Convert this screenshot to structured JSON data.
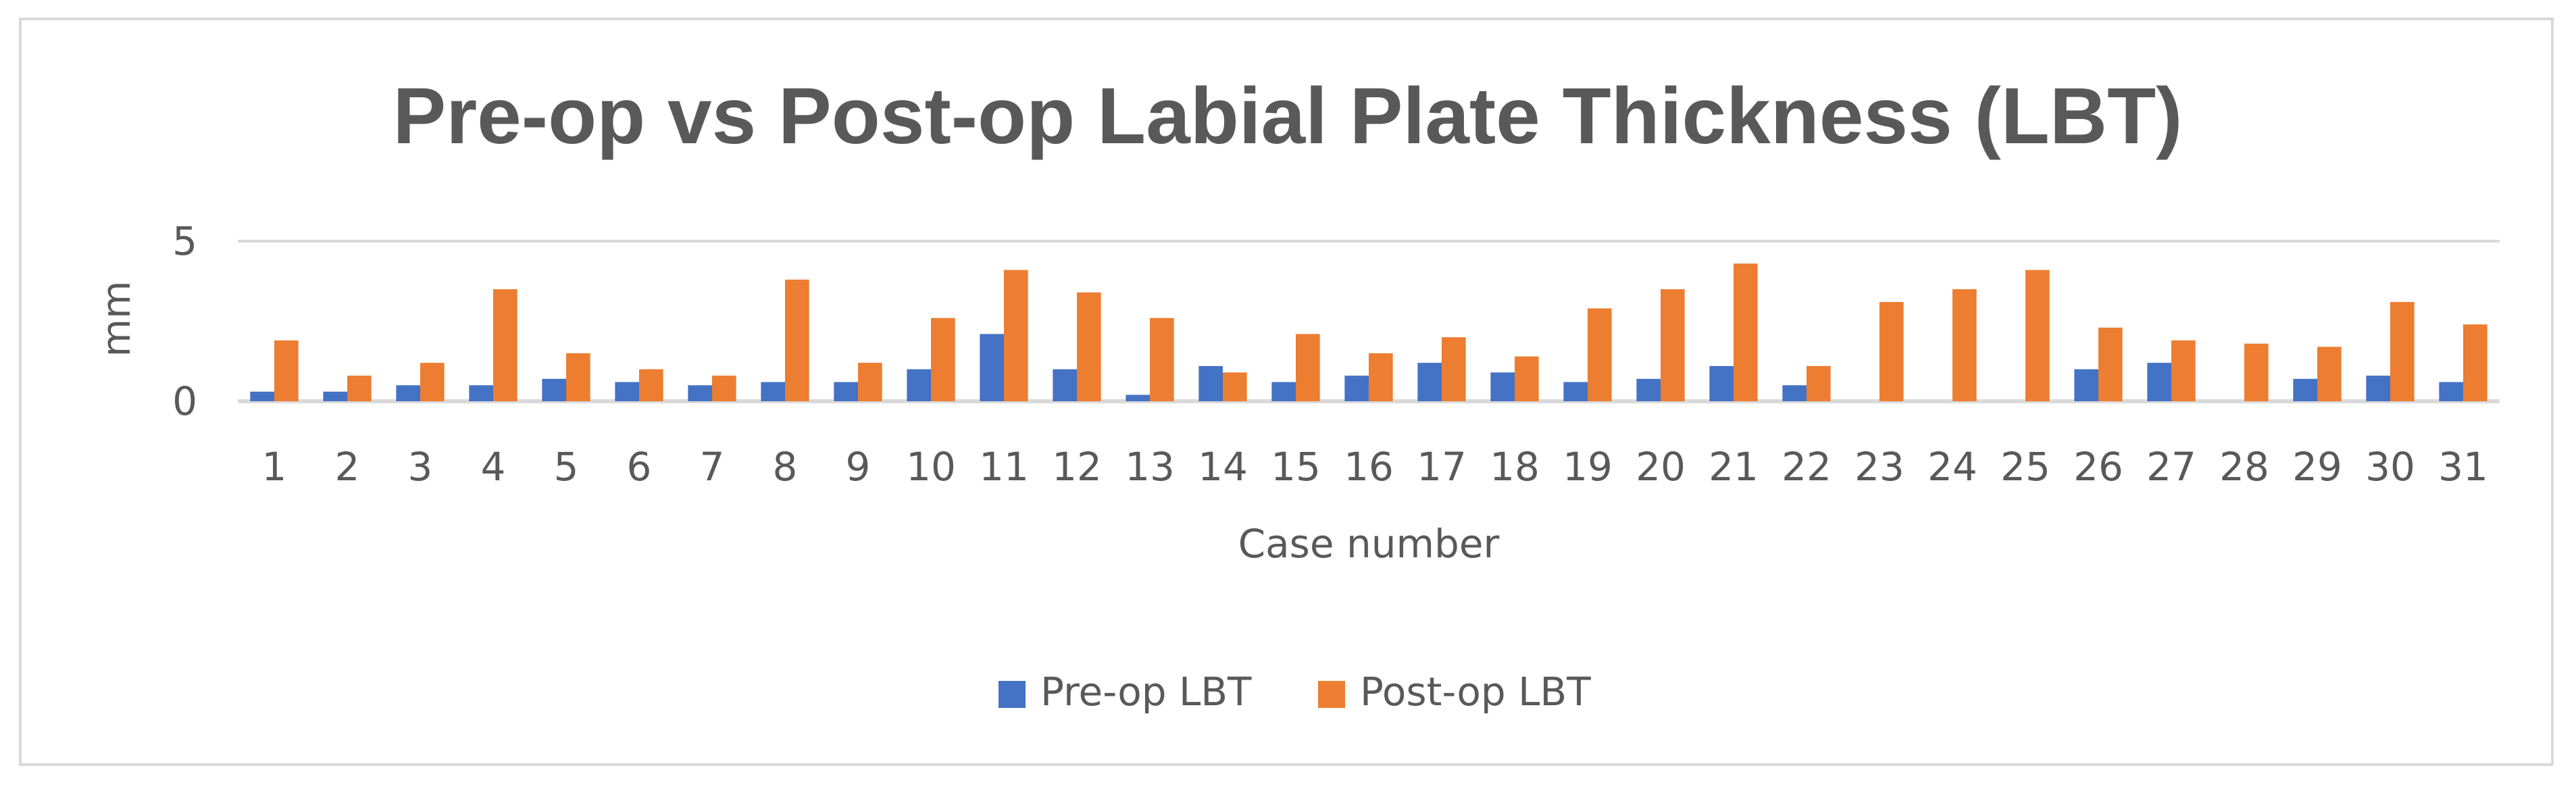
{
  "chart_data": {
    "type": "bar",
    "title": "Pre-op vs Post-op Labial Plate Thickness (LBT)",
    "xlabel": "Case number",
    "ylabel": "mm",
    "ylim": [
      0,
      5
    ],
    "yticks": [
      0,
      5
    ],
    "grid": true,
    "legend_position": "bottom",
    "categories": [
      "1",
      "2",
      "3",
      "4",
      "5",
      "6",
      "7",
      "8",
      "9",
      "10",
      "11",
      "12",
      "13",
      "14",
      "15",
      "16",
      "17",
      "18",
      "19",
      "20",
      "21",
      "22",
      "23",
      "24",
      "25",
      "26",
      "27",
      "28",
      "29",
      "30",
      "31"
    ],
    "series": [
      {
        "name": "Pre-op LBT",
        "color": "#4472c4",
        "values": [
          0.3,
          0.3,
          0.5,
          0.5,
          0.7,
          0.6,
          0.5,
          0.6,
          0.6,
          1.0,
          2.1,
          1.0,
          0.2,
          1.1,
          0.6,
          0.8,
          1.2,
          0.9,
          0.6,
          0.7,
          1.1,
          0.5,
          0,
          0,
          0,
          1.0,
          1.2,
          0,
          0.7,
          0.8,
          0.6
        ]
      },
      {
        "name": "Post-op LBT",
        "color": "#ed7d31",
        "values": [
          1.9,
          0.8,
          1.2,
          3.5,
          1.5,
          1.0,
          0.8,
          3.8,
          1.2,
          2.6,
          4.1,
          3.4,
          2.6,
          0.9,
          2.1,
          1.5,
          2.0,
          1.4,
          2.9,
          3.5,
          4.3,
          1.1,
          3.1,
          3.5,
          4.1,
          2.3,
          1.9,
          1.8,
          1.7,
          3.1,
          2.4
        ]
      }
    ]
  }
}
